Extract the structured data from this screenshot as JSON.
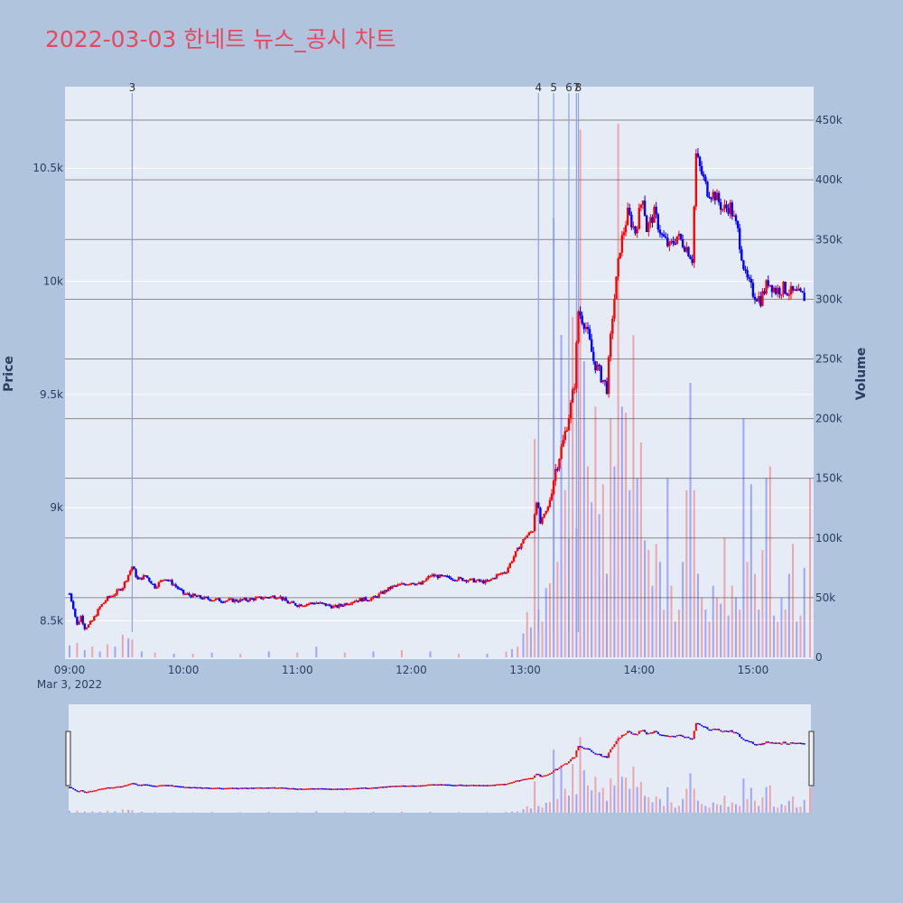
{
  "title": "2022-03-03 한네트 뉴스_공시 차트",
  "colors": {
    "paper": "#b0c4de",
    "plot_bg": "#e5ecf6",
    "title": "#e8475f",
    "up": "#ff0000",
    "down": "#0000ff",
    "event_line": "#8da0e8",
    "volume_grid": "#888888",
    "price_grid": "#ffffff"
  },
  "chart_data": {
    "type": "candlestick",
    "x_axis": {
      "range": [
        "09:00",
        "15:30"
      ],
      "tick_labels": [
        "09:00",
        "10:00",
        "11:00",
        "12:00",
        "13:00",
        "14:00",
        "15:00"
      ],
      "date_label": "Mar 3, 2022"
    },
    "price_axis": {
      "title": "Price",
      "range": [
        8330,
        10860
      ],
      "tick_values": [
        8500,
        9000,
        9500,
        10000,
        10500
      ],
      "tick_labels": [
        "8.5k",
        "9k",
        "9.5k",
        "10k",
        "10.5k"
      ]
    },
    "volume_axis": {
      "title": "Volume",
      "range": [
        0,
        475000
      ],
      "tick_values": [
        0,
        50000,
        100000,
        150000,
        200000,
        250000,
        300000,
        350000,
        400000,
        450000
      ],
      "tick_labels": [
        "0",
        "50k",
        "100k",
        "150k",
        "200k",
        "250k",
        "300k",
        "350k",
        "400k",
        "450k"
      ]
    },
    "events": [
      {
        "label": "3",
        "time": "09:33"
      },
      {
        "label": "4",
        "time": "13:07"
      },
      {
        "label": "5",
        "time": "13:15"
      },
      {
        "label": "6",
        "time": "13:23"
      },
      {
        "label": "7",
        "time": "13:27"
      },
      {
        "label": "8",
        "time": "13:28"
      }
    ],
    "price_path": [
      [
        "09:00",
        8620
      ],
      [
        "09:02",
        8560
      ],
      [
        "09:04",
        8480
      ],
      [
        "09:06",
        8520
      ],
      [
        "09:08",
        8470
      ],
      [
        "09:10",
        8480
      ],
      [
        "09:12",
        8500
      ],
      [
        "09:16",
        8560
      ],
      [
        "09:20",
        8600
      ],
      [
        "09:24",
        8620
      ],
      [
        "09:28",
        8650
      ],
      [
        "09:33",
        8740
      ],
      [
        "09:36",
        8680
      ],
      [
        "09:40",
        8700
      ],
      [
        "09:45",
        8650
      ],
      [
        "09:50",
        8690
      ],
      [
        "09:55",
        8660
      ],
      [
        "10:00",
        8620
      ],
      [
        "10:10",
        8600
      ],
      [
        "10:20",
        8590
      ],
      [
        "10:30",
        8590
      ],
      [
        "10:40",
        8600
      ],
      [
        "10:50",
        8610
      ],
      [
        "10:55",
        8580
      ],
      [
        "11:00",
        8570
      ],
      [
        "11:10",
        8580
      ],
      [
        "11:15",
        8570
      ],
      [
        "11:20",
        8560
      ],
      [
        "11:30",
        8590
      ],
      [
        "11:40",
        8600
      ],
      [
        "11:50",
        8650
      ],
      [
        "12:00",
        8670
      ],
      [
        "12:05",
        8660
      ],
      [
        "12:10",
        8700
      ],
      [
        "12:20",
        8690
      ],
      [
        "12:30",
        8680
      ],
      [
        "12:40",
        8670
      ],
      [
        "12:45",
        8700
      ],
      [
        "12:50",
        8720
      ],
      [
        "12:55",
        8800
      ],
      [
        "13:00",
        8870
      ],
      [
        "13:04",
        8900
      ],
      [
        "13:06",
        9050
      ],
      [
        "13:08",
        8930
      ],
      [
        "13:12",
        9000
      ],
      [
        "13:16",
        9170
      ],
      [
        "13:20",
        9290
      ],
      [
        "13:24",
        9450
      ],
      [
        "13:26",
        9550
      ],
      [
        "13:28",
        9870
      ],
      [
        "13:32",
        9800
      ],
      [
        "13:36",
        9650
      ],
      [
        "13:40",
        9580
      ],
      [
        "13:43",
        9530
      ],
      [
        "13:46",
        9850
      ],
      [
        "13:50",
        10150
      ],
      [
        "13:54",
        10300
      ],
      [
        "13:58",
        10220
      ],
      [
        "14:02",
        10380
      ],
      [
        "14:04",
        10230
      ],
      [
        "14:08",
        10300
      ],
      [
        "14:12",
        10200
      ],
      [
        "14:16",
        10150
      ],
      [
        "14:20",
        10200
      ],
      [
        "14:25",
        10150
      ],
      [
        "14:28",
        10100
      ],
      [
        "14:30",
        10560
      ],
      [
        "14:32",
        10500
      ],
      [
        "14:36",
        10400
      ],
      [
        "14:40",
        10380
      ],
      [
        "14:44",
        10320
      ],
      [
        "14:48",
        10330
      ],
      [
        "14:52",
        10220
      ],
      [
        "14:56",
        10020
      ],
      [
        "15:00",
        9950
      ],
      [
        "15:04",
        9920
      ],
      [
        "15:08",
        10000
      ],
      [
        "15:12",
        9960
      ],
      [
        "15:16",
        9970
      ],
      [
        "15:20",
        9950
      ],
      [
        "15:24",
        9940
      ],
      [
        "15:27",
        9930
      ]
    ],
    "volume_bars": [
      [
        "09:00",
        10000
      ],
      [
        "09:04",
        12000
      ],
      [
        "09:08",
        6000
      ],
      [
        "09:12",
        9000
      ],
      [
        "09:16",
        5000
      ],
      [
        "09:20",
        11000
      ],
      [
        "09:24",
        9000
      ],
      [
        "09:28",
        19000
      ],
      [
        "09:31",
        16000
      ],
      [
        "09:33",
        15000
      ],
      [
        "09:38",
        5000
      ],
      [
        "09:45",
        4000
      ],
      [
        "09:55",
        3000
      ],
      [
        "10:05",
        3000
      ],
      [
        "10:15",
        4000
      ],
      [
        "10:30",
        3000
      ],
      [
        "10:45",
        5000
      ],
      [
        "11:00",
        4000
      ],
      [
        "11:10",
        9000
      ],
      [
        "11:25",
        4000
      ],
      [
        "11:40",
        5000
      ],
      [
        "11:55",
        6000
      ],
      [
        "12:10",
        5000
      ],
      [
        "12:25",
        3000
      ],
      [
        "12:40",
        3000
      ],
      [
        "12:50",
        5000
      ],
      [
        "12:53",
        7000
      ],
      [
        "12:56",
        9000
      ],
      [
        "12:59",
        20000
      ],
      [
        "13:01",
        38000
      ],
      [
        "13:03",
        25000
      ],
      [
        "13:05",
        183000
      ],
      [
        "13:07",
        40000
      ],
      [
        "13:09",
        30000
      ],
      [
        "13:11",
        58000
      ],
      [
        "13:13",
        62000
      ],
      [
        "13:15",
        368000
      ],
      [
        "13:17",
        80000
      ],
      [
        "13:19",
        270000
      ],
      [
        "13:21",
        140000
      ],
      [
        "13:23",
        100000
      ],
      [
        "13:25",
        285000
      ],
      [
        "13:27",
        108000
      ],
      [
        "13:29",
        442000
      ],
      [
        "13:31",
        248000
      ],
      [
        "13:33",
        160000
      ],
      [
        "13:35",
        130000
      ],
      [
        "13:37",
        210000
      ],
      [
        "13:39",
        120000
      ],
      [
        "13:41",
        145000
      ],
      [
        "13:43",
        70000
      ],
      [
        "13:45",
        200000
      ],
      [
        "13:47",
        160000
      ],
      [
        "13:49",
        447000
      ],
      [
        "13:51",
        210000
      ],
      [
        "13:53",
        205000
      ],
      [
        "13:55",
        140000
      ],
      [
        "13:57",
        270000
      ],
      [
        "13:59",
        150000
      ],
      [
        "14:01",
        180000
      ],
      [
        "14:03",
        98000
      ],
      [
        "14:05",
        90000
      ],
      [
        "14:07",
        60000
      ],
      [
        "14:09",
        95000
      ],
      [
        "14:11",
        80000
      ],
      [
        "14:13",
        40000
      ],
      [
        "14:15",
        150000
      ],
      [
        "14:17",
        60000
      ],
      [
        "14:19",
        30000
      ],
      [
        "14:21",
        40000
      ],
      [
        "14:23",
        80000
      ],
      [
        "14:25",
        140000
      ],
      [
        "14:27",
        230000
      ],
      [
        "14:29",
        140000
      ],
      [
        "14:31",
        70000
      ],
      [
        "14:33",
        50000
      ],
      [
        "14:35",
        40000
      ],
      [
        "14:37",
        30000
      ],
      [
        "14:39",
        60000
      ],
      [
        "14:41",
        50000
      ],
      [
        "14:43",
        45000
      ],
      [
        "14:45",
        100000
      ],
      [
        "14:47",
        35000
      ],
      [
        "14:49",
        60000
      ],
      [
        "14:51",
        50000
      ],
      [
        "14:53",
        40000
      ],
      [
        "14:55",
        200000
      ],
      [
        "14:57",
        80000
      ],
      [
        "14:59",
        145000
      ],
      [
        "15:01",
        70000
      ],
      [
        "15:03",
        40000
      ],
      [
        "15:05",
        90000
      ],
      [
        "15:07",
        150000
      ],
      [
        "15:09",
        160000
      ],
      [
        "15:11",
        35000
      ],
      [
        "15:13",
        30000
      ],
      [
        "15:15",
        50000
      ],
      [
        "15:17",
        40000
      ],
      [
        "15:19",
        70000
      ],
      [
        "15:21",
        95000
      ],
      [
        "15:23",
        30000
      ],
      [
        "15:25",
        35000
      ],
      [
        "15:27",
        75000
      ],
      [
        "15:30",
        150000
      ]
    ]
  }
}
